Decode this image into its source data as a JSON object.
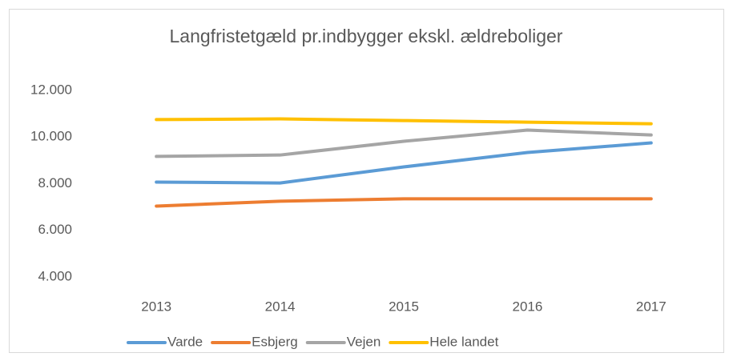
{
  "chart_data": {
    "type": "line",
    "title": "Langfristetgæld pr.indbygger ekskl. ældreboliger",
    "categories": [
      "2013",
      "2014",
      "2015",
      "2016",
      "2017"
    ],
    "series": [
      {
        "name": "Varde",
        "color": "#5b9bd5",
        "values": [
          8070,
          8030,
          8720,
          9340,
          9750
        ]
      },
      {
        "name": "Esbjerg",
        "color": "#ed7d31",
        "values": [
          7040,
          7250,
          7350,
          7350,
          7350
        ]
      },
      {
        "name": "Vejen",
        "color": "#a5a5a5",
        "values": [
          9170,
          9230,
          9820,
          10300,
          10090
        ]
      },
      {
        "name": "Hele landet",
        "color": "#ffc000",
        "values": [
          10750,
          10780,
          10710,
          10640,
          10570
        ]
      }
    ],
    "ylim": [
      4000,
      12000
    ],
    "yticks": [
      {
        "value": 4000,
        "label": "4.000"
      },
      {
        "value": 6000,
        "label": "6.000"
      },
      {
        "value": 8000,
        "label": "8.000"
      },
      {
        "value": 10000,
        "label": "10.000"
      },
      {
        "value": 12000,
        "label": "12.000"
      }
    ],
    "grid": false,
    "legend": "bottom"
  }
}
